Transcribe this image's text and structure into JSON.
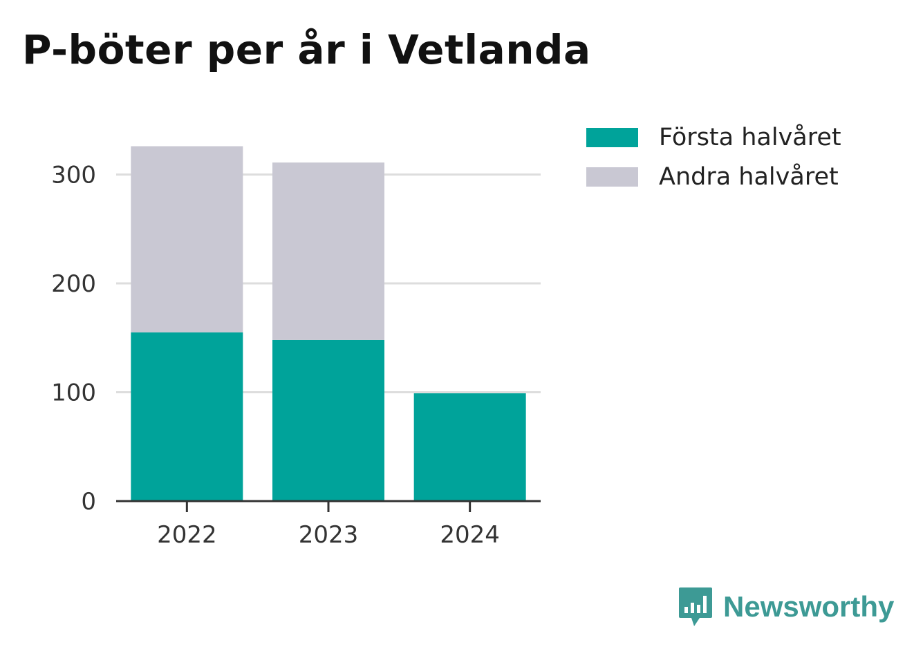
{
  "title": "P-böter per år i Vetlanda",
  "brand": {
    "name": "Newsworthy",
    "color": "#3d9a95"
  },
  "legend": {
    "items": [
      {
        "label": "Första halvåret",
        "color": "#00a39a"
      },
      {
        "label": "Andra halvåret",
        "color": "#c9c8d3"
      }
    ]
  },
  "chart_data": {
    "type": "bar",
    "stacked": true,
    "categories": [
      "2022",
      "2023",
      "2024"
    ],
    "series": [
      {
        "name": "Första halvåret",
        "color": "#00a39a",
        "values": [
          155,
          148,
          99
        ]
      },
      {
        "name": "Andra halvåret",
        "color": "#c9c8d3",
        "values": [
          171,
          163,
          0
        ]
      }
    ],
    "yticks": [
      0,
      100,
      200,
      300
    ],
    "ylim": [
      0,
      330
    ],
    "grid": true,
    "legend_position": "top-right",
    "xlabel": "",
    "ylabel": ""
  }
}
